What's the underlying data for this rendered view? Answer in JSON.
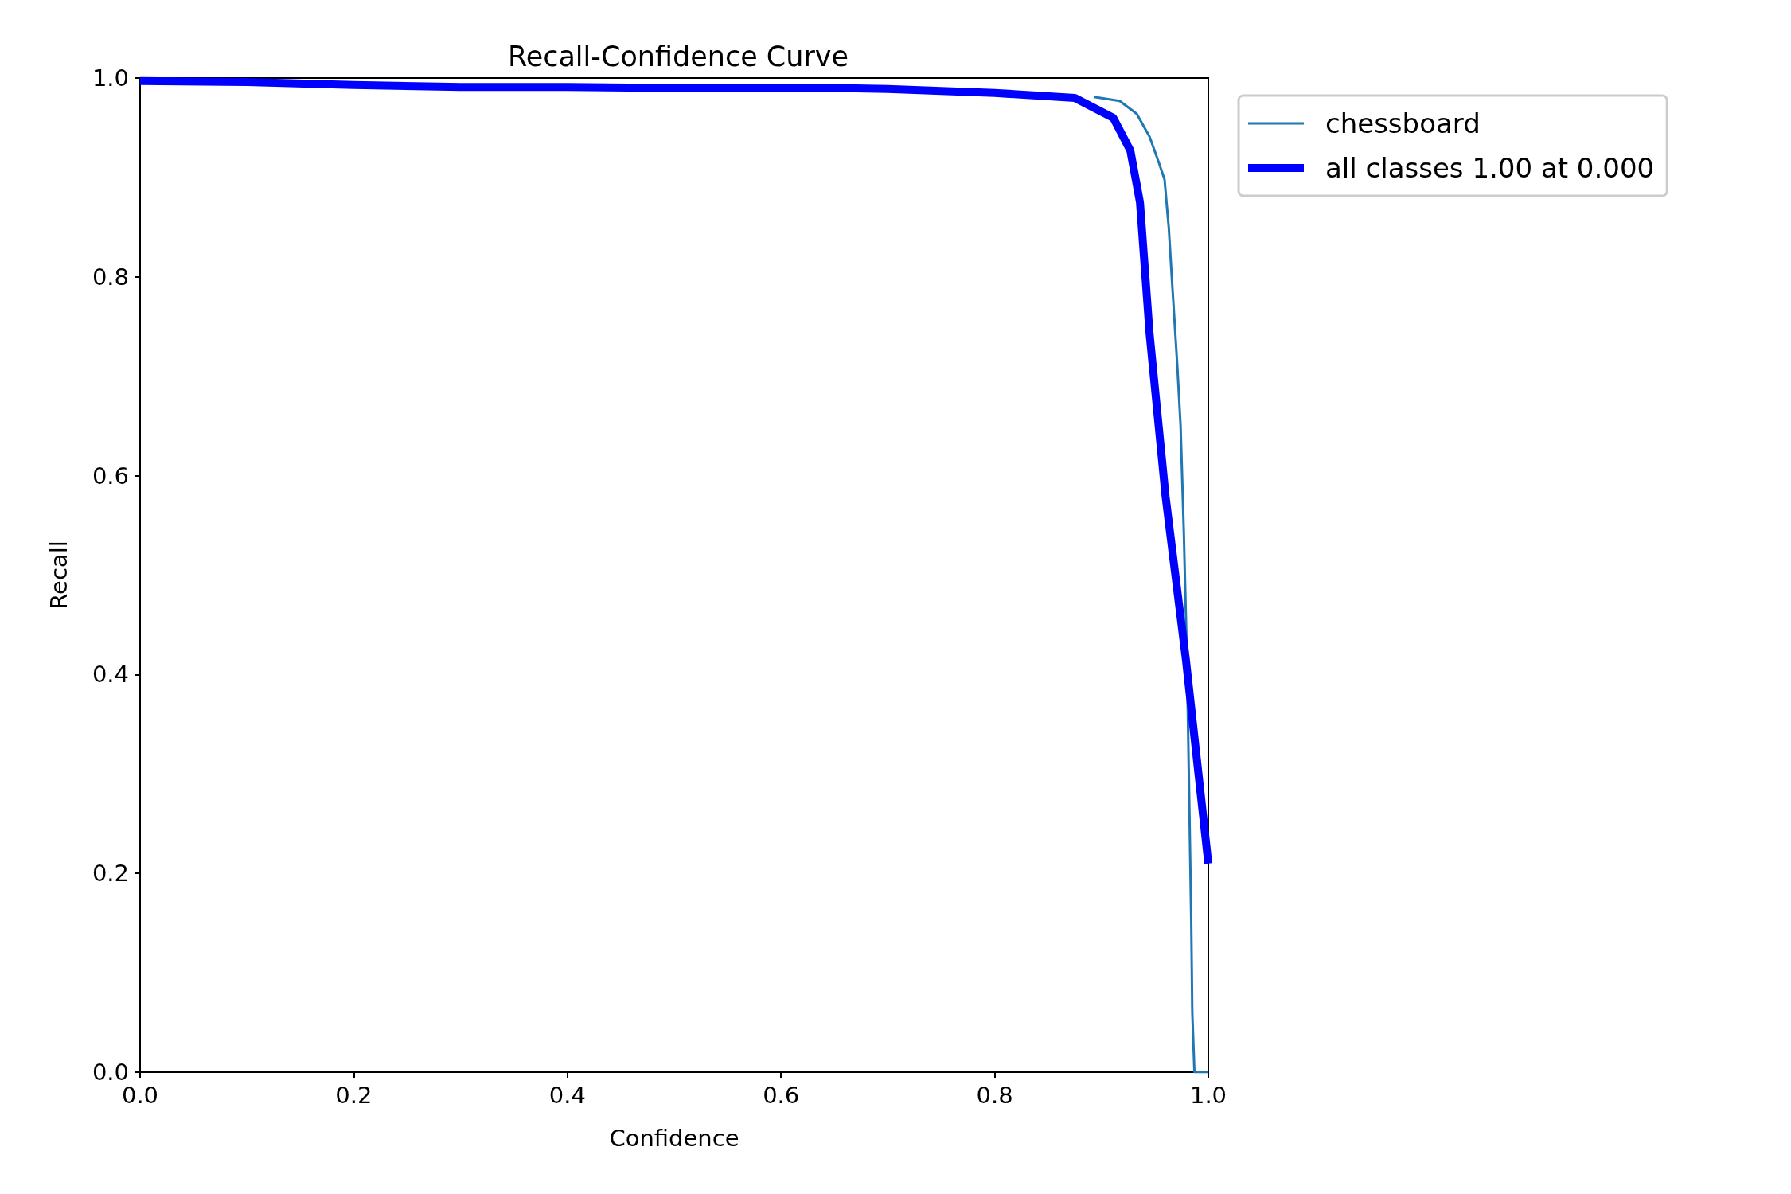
{
  "chart_data": {
    "type": "line",
    "title": "Recall-Confidence Curve",
    "xlabel": "Confidence",
    "ylabel": "Recall",
    "xlim": [
      0,
      1
    ],
    "ylim": [
      0,
      1
    ],
    "xticks": [
      {
        "value": 0,
        "label": "0.0"
      },
      {
        "value": 0.2,
        "label": "0.2"
      },
      {
        "value": 0.4,
        "label": "0.4"
      },
      {
        "value": 0.6,
        "label": "0.6"
      },
      {
        "value": 0.8,
        "label": "0.8"
      },
      {
        "value": 1,
        "label": "1.0"
      }
    ],
    "yticks": [
      {
        "value": 0,
        "label": "0.0"
      },
      {
        "value": 0.2,
        "label": "0.2"
      },
      {
        "value": 0.4,
        "label": "0.4"
      },
      {
        "value": 0.6,
        "label": "0.6"
      },
      {
        "value": 0.8,
        "label": "0.8"
      },
      {
        "value": 1,
        "label": "1.0"
      }
    ],
    "grid": false,
    "legend": "top right",
    "marker": "none",
    "line_style": "solid",
    "series": [
      {
        "name": "chessboard",
        "color": "#1f77b4",
        "x": [
          0.893,
          0.917,
          0.933,
          0.945,
          0.954,
          0.959,
          0.963,
          0.966,
          0.971,
          0.974,
          0.977,
          0.98,
          0.982,
          0.984,
          0.985,
          0.987,
          1
        ],
        "values": [
          0.981,
          0.977,
          0.964,
          0.941,
          0.914,
          0.898,
          0.849,
          0.796,
          0.71,
          0.651,
          0.546,
          0.415,
          0.283,
          0.152,
          0.06,
          0,
          0
        ]
      },
      {
        "name": "all classes 1.00 at 0.000",
        "color": "#0000ff",
        "x": [
          0,
          0.1,
          0.2,
          0.3,
          0.4,
          0.5,
          0.6,
          0.65,
          0.7,
          0.8,
          0.875,
          0.911,
          0.927,
          0.936,
          0.945,
          0.96,
          0.979,
          1
        ],
        "values": [
          0.997,
          0.996,
          0.993,
          0.991,
          0.991,
          0.99,
          0.99,
          0.99,
          0.989,
          0.985,
          0.98,
          0.96,
          0.927,
          0.875,
          0.743,
          0.579,
          0.415,
          0.21
        ]
      }
    ]
  }
}
